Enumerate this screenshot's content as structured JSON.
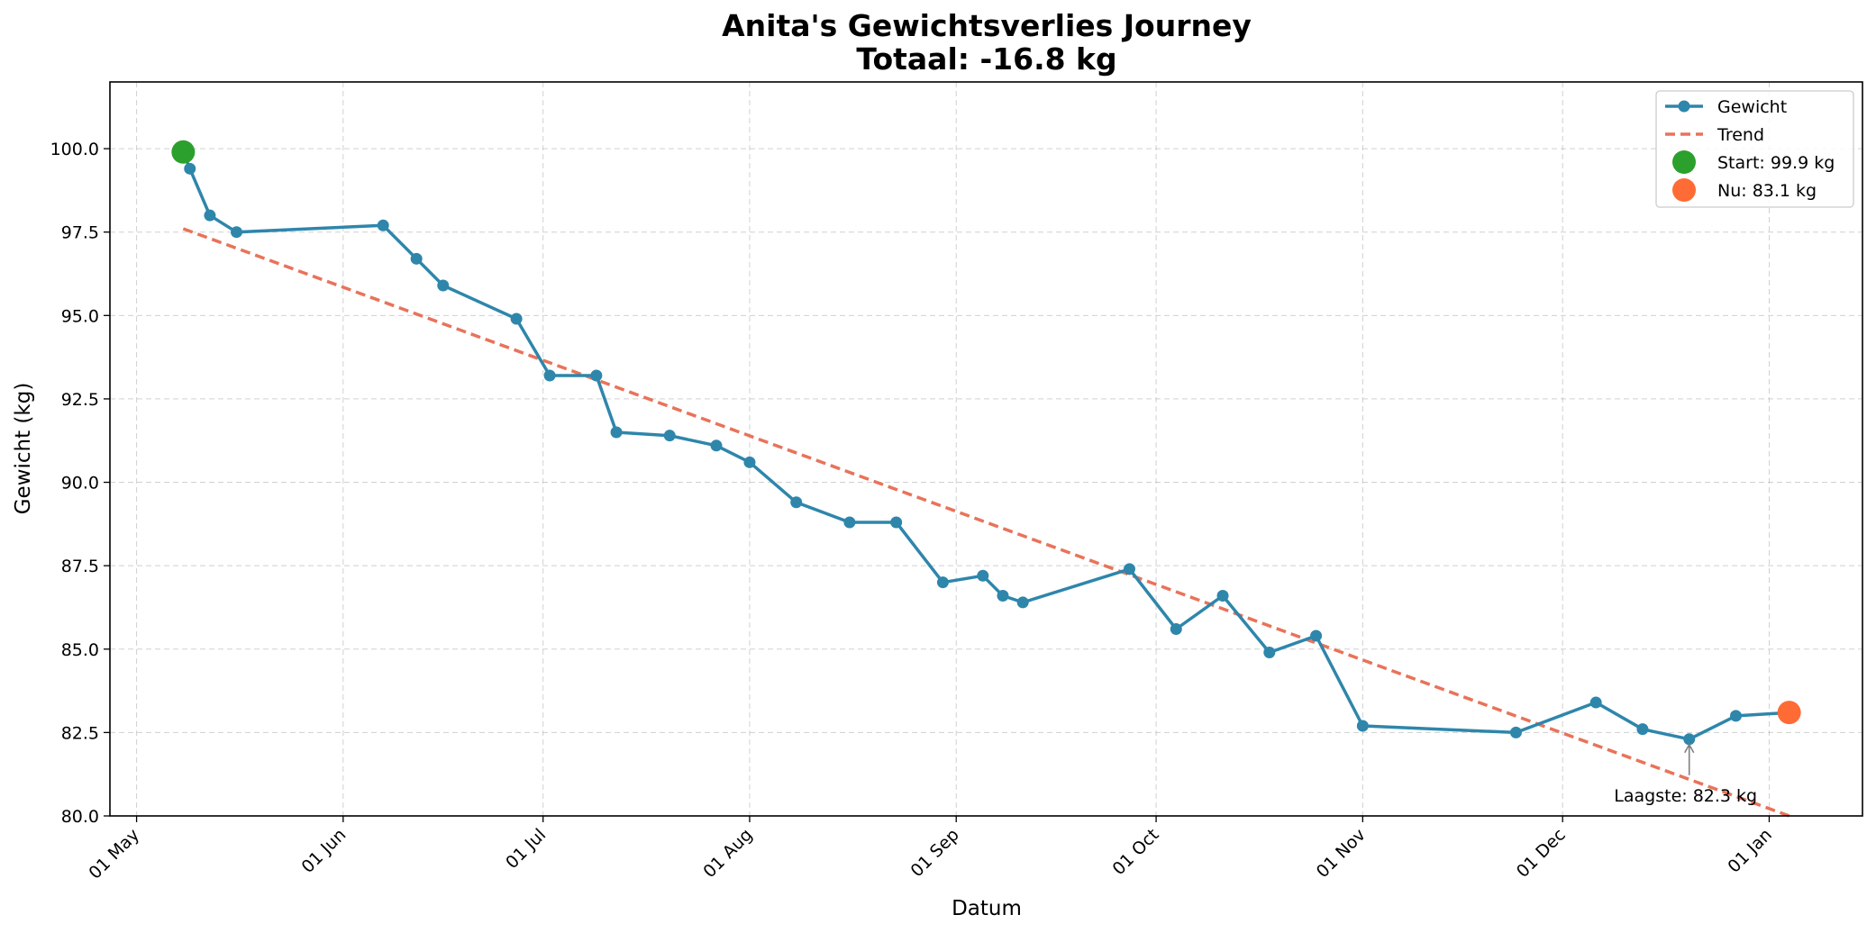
{
  "chart_data": {
    "type": "line",
    "title": "Anita's Gewichtsverlies Journey",
    "subtitle": "Totaal: -16.8 kg",
    "xlabel": "Datum",
    "ylabel": "Gewicht (kg)",
    "ylim": [
      80.0,
      102.0
    ],
    "xlim": [
      "2025-04-27",
      "2026-01-15"
    ],
    "y_ticks": [
      80.0,
      82.5,
      85.0,
      87.5,
      90.0,
      92.5,
      95.0,
      97.5,
      100.0
    ],
    "y_tick_labels": [
      "80.0",
      "82.5",
      "85.0",
      "87.5",
      "90.0",
      "92.5",
      "95.0",
      "97.5",
      "100.0"
    ],
    "x_ticks": [
      "2025-05-01",
      "2025-06-01",
      "2025-07-01",
      "2025-08-01",
      "2025-09-01",
      "2025-10-01",
      "2025-11-01",
      "2025-12-01",
      "2026-01-01"
    ],
    "x_tick_labels": [
      "01 May",
      "01 Jun",
      "01 Jul",
      "01 Aug",
      "01 Sep",
      "01 Oct",
      "01 Nov",
      "01 Dec",
      "01 Jan"
    ],
    "grid": true,
    "legend_position": "top-right",
    "series": [
      {
        "name": "Gewicht",
        "style": "line-marker",
        "color": "#2E86AB",
        "x": [
          "2025-05-08",
          "2025-05-09",
          "2025-05-12",
          "2025-05-16",
          "2025-06-07",
          "2025-06-12",
          "2025-06-16",
          "2025-06-27",
          "2025-07-02",
          "2025-07-09",
          "2025-07-12",
          "2025-07-20",
          "2025-07-27",
          "2025-08-01",
          "2025-08-08",
          "2025-08-16",
          "2025-08-23",
          "2025-08-30",
          "2025-09-05",
          "2025-09-08",
          "2025-09-11",
          "2025-09-27",
          "2025-10-04",
          "2025-10-11",
          "2025-10-18",
          "2025-10-25",
          "2025-11-01",
          "2025-11-24",
          "2025-12-06",
          "2025-12-13",
          "2025-12-20",
          "2025-12-27",
          "2026-01-04"
        ],
        "values": [
          99.9,
          99.4,
          98.0,
          97.5,
          97.7,
          96.7,
          95.9,
          94.9,
          93.2,
          93.2,
          91.5,
          91.4,
          91.1,
          90.6,
          89.4,
          88.8,
          88.8,
          87.0,
          87.2,
          86.6,
          86.4,
          87.4,
          85.6,
          86.6,
          84.9,
          85.4,
          82.7,
          82.5,
          83.4,
          82.6,
          82.3,
          83.0,
          83.1
        ]
      },
      {
        "name": "Trend",
        "style": "dashed",
        "color": "#E8735A",
        "x": [
          "2025-05-08",
          "2026-01-04"
        ],
        "values": [
          97.6,
          80.0
        ]
      }
    ],
    "markers": [
      {
        "name": "Start: 99.9 kg",
        "x": "2025-05-08",
        "value": 99.9,
        "color": "#2CA02C"
      },
      {
        "name": "Nu: 83.1 kg",
        "x": "2026-01-04",
        "value": 83.1,
        "color": "#FF6B35"
      }
    ],
    "annotations": [
      {
        "text": "Laagste: 82.3 kg",
        "x": "2025-12-20",
        "value": 82.3
      }
    ]
  }
}
